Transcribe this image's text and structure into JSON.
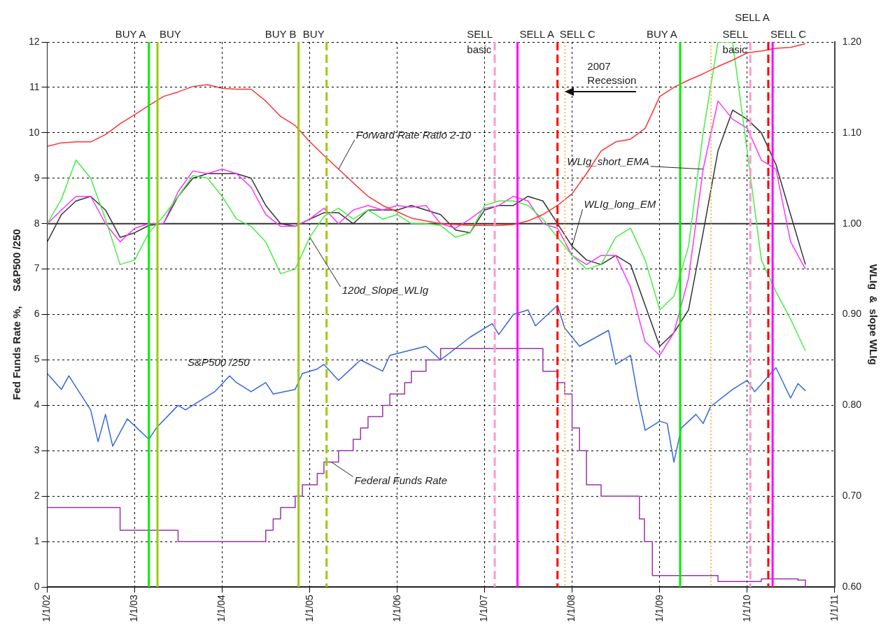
{
  "chart_data": {
    "type": "line",
    "xlim": [
      "2002-01-01",
      "2011-01-01"
    ],
    "xticks": [
      {
        "value": "2002-01-01",
        "label": "1/1/02"
      },
      {
        "value": "2003-01-01",
        "label": "1/1/03"
      },
      {
        "value": "2004-01-01",
        "label": "1/1/04"
      },
      {
        "value": "2005-01-01",
        "label": "1/1/05"
      },
      {
        "value": "2006-01-01",
        "label": "1/1/06"
      },
      {
        "value": "2007-01-01",
        "label": "1/1/07"
      },
      {
        "value": "2008-01-01",
        "label": "1/1/08"
      },
      {
        "value": "2009-01-01",
        "label": "1/1/09"
      },
      {
        "value": "2010-01-01",
        "label": "1/1/10"
      },
      {
        "value": "2011-01-01",
        "label": "1/1/11"
      }
    ],
    "ylim": [
      0,
      12
    ],
    "yticks": [
      0,
      1,
      2,
      3,
      4,
      5,
      6,
      7,
      8,
      9,
      10,
      11,
      12
    ],
    "y2lim": [
      0.6,
      1.2
    ],
    "y2ticks": [
      {
        "value": 0.6,
        "label": "0.60"
      },
      {
        "value": 0.7,
        "label": "0.70"
      },
      {
        "value": 0.8,
        "label": "0.80"
      },
      {
        "value": 0.9,
        "label": "0.90"
      },
      {
        "value": 1.0,
        "label": "1.00"
      },
      {
        "value": 1.1,
        "label": "1.10"
      },
      {
        "value": 1.2,
        "label": "1.20"
      }
    ],
    "ylabel": "Fed Funds Rate %,     S&P500 /250",
    "y2label": "WLIg  &  slope WLIg",
    "grid": true,
    "x": [
      "2002-01",
      "2002-03",
      "2002-05",
      "2002-07",
      "2002-09",
      "2002-11",
      "2003-01",
      "2003-03",
      "2003-05",
      "2003-07",
      "2003-09",
      "2003-11",
      "2004-01",
      "2004-03",
      "2004-05",
      "2004-07",
      "2004-09",
      "2004-11",
      "2005-01",
      "2005-03",
      "2005-05",
      "2005-07",
      "2005-09",
      "2005-11",
      "2006-01",
      "2006-03",
      "2006-05",
      "2006-07",
      "2006-09",
      "2006-11",
      "2007-01",
      "2007-03",
      "2007-05",
      "2007-07",
      "2007-09",
      "2007-11",
      "2008-01",
      "2008-03",
      "2008-05",
      "2008-07",
      "2008-09",
      "2008-11",
      "2009-01",
      "2009-03",
      "2009-05",
      "2009-07",
      "2009-09",
      "2009-11",
      "2010-01",
      "2010-03",
      "2010-05",
      "2010-07",
      "2010-09"
    ],
    "series": [
      {
        "axis": "y2",
        "color": "#ff3333",
        "values": [
          1.085,
          1.089,
          1.09,
          1.09,
          1.098,
          1.11,
          1.12,
          1.13,
          1.14,
          1.145,
          1.151,
          1.153,
          1.149,
          1.148,
          1.148,
          1.135,
          1.118,
          1.108,
          1.09,
          1.075,
          1.06,
          1.045,
          1.03,
          1.02,
          1.013,
          1.006,
          1.003,
          1.0,
          0.999,
          0.998,
          0.998,
          0.998,
          0.999,
          1.003,
          1.01,
          1.02,
          1.033,
          1.055,
          1.08,
          1.09,
          1.093,
          1.105,
          1.14,
          1.15,
          1.158,
          1.165,
          1.173,
          1.18,
          1.188,
          1.19,
          1.193,
          1.194,
          1.198
        ]
      },
      {
        "axis": "y2",
        "color": "#44ee44",
        "values": [
          1.0,
          1.027,
          1.07,
          1.05,
          1.005,
          0.955,
          0.96,
          0.99,
          1.008,
          1.03,
          1.053,
          1.05,
          1.03,
          1.005,
          0.997,
          0.98,
          0.945,
          0.95,
          0.985,
          1.008,
          1.017,
          1.005,
          1.015,
          1.005,
          1.01,
          1.0,
          1.0,
          0.998,
          0.985,
          0.99,
          1.02,
          1.025,
          1.025,
          1.02,
          1.005,
          0.985,
          0.965,
          0.95,
          0.955,
          0.985,
          0.995,
          0.96,
          0.905,
          0.92,
          0.975,
          1.1,
          1.2,
          1.2,
          1.08,
          0.96,
          0.925,
          0.895,
          0.86
        ]
      },
      {
        "axis": "y2",
        "color": "#ff33ff",
        "values": [
          1.0,
          1.015,
          1.03,
          1.03,
          1.0,
          0.98,
          0.995,
          1.0,
          1.0,
          1.035,
          1.058,
          1.055,
          1.06,
          1.055,
          1.04,
          1.01,
          0.997,
          0.997,
          1.005,
          1.017,
          1.0,
          1.015,
          1.02,
          1.015,
          1.02,
          1.018,
          1.02,
          1.0,
          0.995,
          1.005,
          1.017,
          1.02,
          1.03,
          1.025,
          1.0,
          0.995,
          0.965,
          0.955,
          0.965,
          0.965,
          0.93,
          0.87,
          0.855,
          0.88,
          0.94,
          1.06,
          1.135,
          1.115,
          1.105,
          1.07,
          1.06,
          0.98,
          0.95
        ]
      },
      {
        "axis": "y2",
        "color": "#333333",
        "values": [
          0.98,
          1.01,
          1.025,
          1.03,
          1.015,
          0.985,
          0.99,
          0.998,
          1.0,
          1.03,
          1.05,
          1.055,
          1.055,
          1.055,
          1.05,
          1.02,
          1.0,
          0.997,
          1.005,
          1.012,
          1.012,
          1.0,
          1.015,
          1.015,
          1.015,
          1.02,
          1.015,
          1.01,
          0.993,
          0.99,
          1.015,
          1.02,
          1.02,
          1.03,
          1.025,
          1.0,
          0.975,
          0.96,
          0.955,
          0.965,
          0.955,
          0.91,
          0.865,
          0.88,
          0.905,
          0.99,
          1.08,
          1.125,
          1.115,
          1.1,
          1.065,
          1.01,
          0.955
        ]
      },
      {
        "color": "#3366dd",
        "x": [
          "2002-01",
          "2002-03",
          "2002-04",
          "2002-05",
          "2002-07",
          "2002-08",
          "2002-09",
          "2002-10",
          "2002-12",
          "2003-01",
          "2003-03",
          "2003-04",
          "2003-07",
          "2003-08",
          "2003-10",
          "2003-12",
          "2004-02",
          "2004-03",
          "2004-05",
          "2004-07",
          "2004-08",
          "2004-11",
          "2004-12",
          "2005-02",
          "2005-03",
          "2005-05",
          "2005-08",
          "2005-11",
          "2005-12",
          "2006-05",
          "2006-07",
          "2006-09",
          "2006-11",
          "2007-02",
          "2007-03",
          "2007-05",
          "2007-07",
          "2007-08",
          "2007-11",
          "2007-12",
          "2008-02",
          "2008-06",
          "2008-07",
          "2008-09",
          "2008-10",
          "2008-11",
          "2009-01",
          "2009-02",
          "2009-03",
          "2009-04",
          "2009-06",
          "2009-07",
          "2009-08",
          "2009-11",
          "2010-01",
          "2010-02",
          "2010-05",
          "2010-07",
          "2010-08",
          "2010-09"
        ],
        "values": [
          4.7,
          4.35,
          4.65,
          4.4,
          3.9,
          3.2,
          3.8,
          3.1,
          3.7,
          3.55,
          3.25,
          3.5,
          4.0,
          3.9,
          4.1,
          4.3,
          4.65,
          4.5,
          4.3,
          4.5,
          4.25,
          4.35,
          4.7,
          4.8,
          4.9,
          4.55,
          5.0,
          4.75,
          5.1,
          5.3,
          5.0,
          5.25,
          5.5,
          5.8,
          5.56,
          6.0,
          6.1,
          5.75,
          6.2,
          5.7,
          5.3,
          5.65,
          4.9,
          5.1,
          4.2,
          3.45,
          3.65,
          3.6,
          2.75,
          3.5,
          3.8,
          3.6,
          3.97,
          4.35,
          4.55,
          4.3,
          4.83,
          4.16,
          4.48,
          4.32
        ]
      },
      {
        "type": "step",
        "color": "#9933aa",
        "x": [
          "2002-01",
          "2002-11",
          "2003-07",
          "2004-07",
          "2004-08",
          "2004-09",
          "2004-11",
          "2004-12",
          "2005-02",
          "2005-03",
          "2005-05",
          "2005-07",
          "2005-08",
          "2005-09",
          "2005-11",
          "2005-12",
          "2006-02",
          "2006-03",
          "2006-05",
          "2006-07",
          "2007-09",
          "2007-11",
          "2007-12",
          "2008-01",
          "2008-02",
          "2008-03",
          "2008-05",
          "2008-10-08",
          "2008-10-29",
          "2008-12",
          "2009-09",
          "2010-03",
          "2010-08",
          "2010-09"
        ],
        "values": [
          1.75,
          1.25,
          1.0,
          1.25,
          1.5,
          1.75,
          2.0,
          2.25,
          2.5,
          2.75,
          3.0,
          3.25,
          3.5,
          3.75,
          4.0,
          4.25,
          4.5,
          4.75,
          5.0,
          5.25,
          4.75,
          4.5,
          4.25,
          3.5,
          3.0,
          2.25,
          2.0,
          1.5,
          1.0,
          0.25,
          0.12,
          0.18,
          0.15,
          0
        ]
      }
    ],
    "ref_lines": [
      {
        "axis": "y2",
        "value": 1.0,
        "color": "#333333",
        "line_style": "solid"
      },
      {
        "axis": "x",
        "value": "2003-03-01",
        "label": "BUY A",
        "color": "#00ee00",
        "line_style": "solid"
      },
      {
        "axis": "x",
        "value": "2003-04-06",
        "label": "BUY",
        "color": "#99cc00",
        "line_style": "solid"
      },
      {
        "axis": "x",
        "value": "2004-11-15",
        "label": "BUY B",
        "color": "#99cc00",
        "line_style": "solid"
      },
      {
        "axis": "x",
        "value": "2005-03-12",
        "label": "BUY",
        "color": "#99cc00",
        "line_style": "dashed"
      },
      {
        "axis": "x",
        "value": "2007-02-12",
        "label": "SELL\nbasic",
        "color": "#ff99cc",
        "line_style": "dashed"
      },
      {
        "axis": "x",
        "value": "2007-05-18",
        "label": "SELL A",
        "color": "#ff00ff",
        "line_style": "solid"
      },
      {
        "axis": "x",
        "value": "2007-11-01",
        "label": "SELL C",
        "color": "#ff0000",
        "line_style": "dashed"
      },
      {
        "axis": "x",
        "value": "2007-12-02",
        "color": "#ffbb55",
        "line_style": "dotted"
      },
      {
        "axis": "x",
        "value": "2009-03-27",
        "label": "BUY A",
        "color": "#00ee00",
        "line_style": "solid"
      },
      {
        "axis": "x",
        "value": "2009-08-03",
        "color": "#ffbb55",
        "line_style": "dotted"
      },
      {
        "axis": "x",
        "value": "2010-01-14",
        "label": "SELL\nbasic",
        "color": "#ff99cc",
        "line_style": "dashed"
      },
      {
        "axis": "x",
        "value": "2010-03-30",
        "label": "SELL C",
        "color": "#ff0000",
        "line_style": "dashed"
      },
      {
        "axis": "x",
        "value": "2010-04-17",
        "label": "SELL A",
        "color": "#ff00ff",
        "line_style": "solid"
      }
    ],
    "annotations": [
      {
        "text": "Forward Rate Ratio 2-10",
        "x": "2005-05",
        "y": 9.2
      },
      {
        "text": "120d_Slope_WLIg",
        "x": "2005-01",
        "y": 7.7
      },
      {
        "text": "WLIg_short_EMA",
        "x": "2009-07",
        "y": 9.2
      },
      {
        "text": "WLIg_long_EM",
        "x": "2008-01",
        "y": 7.5
      },
      {
        "text": "S&P500 /250",
        "x": "2004-02",
        "y": 4.65
      },
      {
        "text": "Federal Funds Rate",
        "x": "2005-04",
        "y": 2.75
      },
      {
        "text": "2007\nRecession",
        "x": "2007-12-02",
        "y": 10.9
      }
    ]
  }
}
